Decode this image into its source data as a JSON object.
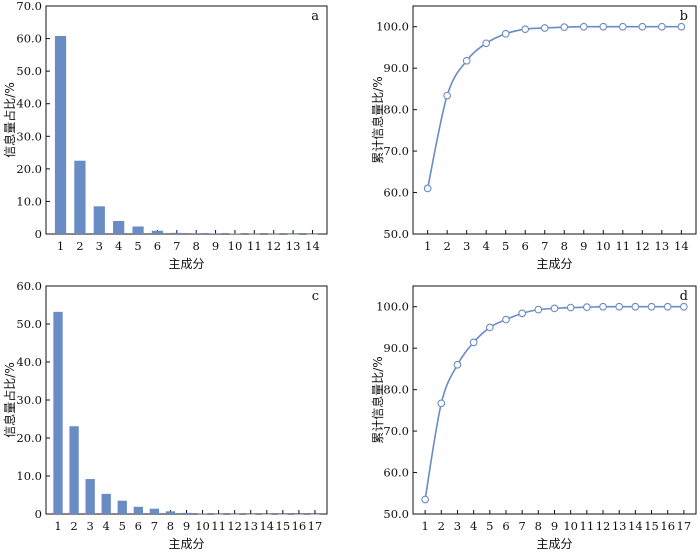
{
  "colors": {
    "bar": "#6a8cc4",
    "line": "#6a8cc4",
    "axis": "#111111"
  },
  "chart_data": [
    {
      "id": "a",
      "type": "bar",
      "panel_label": "a",
      "xlabel": "主成分",
      "ylabel": "信息量占比/%",
      "categories": [
        "1",
        "2",
        "3",
        "4",
        "5",
        "6",
        "7",
        "8",
        "9",
        "10",
        "11",
        "12",
        "13",
        "14"
      ],
      "values": [
        60.8,
        22.5,
        8.5,
        4.0,
        2.3,
        1.0,
        0.35,
        0.25,
        0.2,
        0.15,
        0.1,
        0.1,
        0.05,
        0.05
      ],
      "ylim": [
        0,
        70
      ],
      "yticks": [
        0,
        10,
        20,
        30,
        40,
        50,
        60,
        70
      ],
      "ytick_labels": [
        "0",
        "10.0",
        "20.0",
        "30.0",
        "40.0",
        "50.0",
        "60.0",
        "70.0"
      ]
    },
    {
      "id": "b",
      "type": "line",
      "panel_label": "b",
      "xlabel": "主成分",
      "ylabel": "累计信息量比/%",
      "x": [
        "1",
        "2",
        "3",
        "4",
        "5",
        "6",
        "7",
        "8",
        "9",
        "10",
        "11",
        "12",
        "13",
        "14"
      ],
      "values": [
        61.0,
        83.4,
        91.8,
        96.0,
        98.3,
        99.4,
        99.7,
        99.9,
        100.0,
        100.0,
        100.0,
        100.0,
        100.0,
        100.0
      ],
      "ylim": [
        50,
        105
      ],
      "yticks": [
        50,
        60,
        70,
        80,
        90,
        100
      ],
      "ytick_labels": [
        "50.0",
        "60.0",
        "70.0",
        "80.0",
        "90.0",
        "100.0"
      ]
    },
    {
      "id": "c",
      "type": "bar",
      "panel_label": "c",
      "xlabel": "主成分",
      "ylabel": "信息量占比/%",
      "categories": [
        "1",
        "2",
        "3",
        "4",
        "5",
        "6",
        "7",
        "8",
        "9",
        "10",
        "11",
        "12",
        "13",
        "14",
        "15",
        "16",
        "17"
      ],
      "values": [
        53.2,
        23.1,
        9.2,
        5.3,
        3.5,
        1.9,
        1.4,
        0.7,
        0.3,
        0.1,
        0.05,
        0.05,
        0.03,
        0.02,
        0.02,
        0.01,
        0.01
      ],
      "ylim": [
        0,
        60
      ],
      "yticks": [
        0,
        10,
        20,
        30,
        40,
        50,
        60
      ],
      "ytick_labels": [
        "0",
        "10.0",
        "20.0",
        "30.0",
        "40.0",
        "50.0",
        "60.0"
      ]
    },
    {
      "id": "d",
      "type": "line",
      "panel_label": "d",
      "xlabel": "主成分",
      "ylabel": "累计信息量比/%",
      "x": [
        "1",
        "2",
        "3",
        "4",
        "5",
        "6",
        "7",
        "8",
        "9",
        "10",
        "11",
        "12",
        "13",
        "14",
        "15",
        "16",
        "17"
      ],
      "values": [
        53.5,
        76.7,
        86.0,
        91.4,
        95.0,
        96.9,
        98.4,
        99.3,
        99.6,
        99.8,
        99.9,
        100.0,
        100.0,
        100.0,
        100.0,
        100.0,
        100.0
      ],
      "ylim": [
        50,
        105
      ],
      "yticks": [
        50,
        60,
        70,
        80,
        90,
        100
      ],
      "ytick_labels": [
        "50.0",
        "60.0",
        "70.0",
        "80.0",
        "90.0",
        "100.0"
      ]
    }
  ]
}
